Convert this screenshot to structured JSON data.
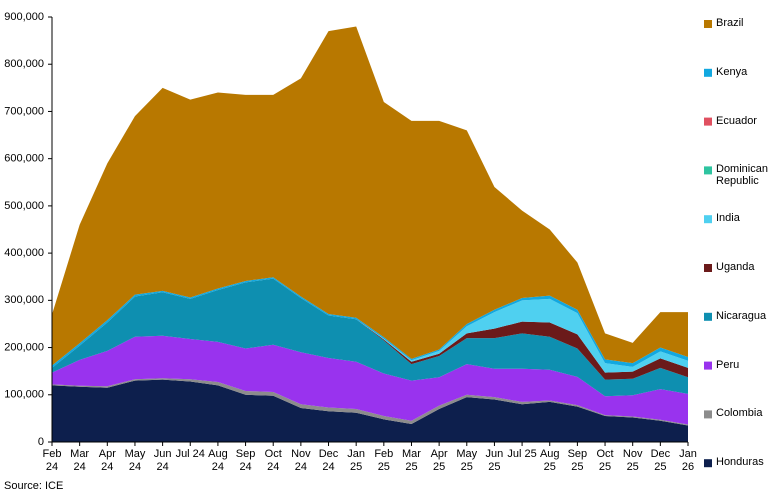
{
  "chart_data": {
    "type": "stacked-area",
    "source": "Source: ICE",
    "categories": [
      "Feb 24",
      "Mar 24",
      "Apr 24",
      "May 24",
      "Jun 24",
      "Jul 24",
      "Aug 24",
      "Sep 24",
      "Oct 24",
      "Nov 24",
      "Dec 24",
      "Jan 25",
      "Feb 25",
      "Mar 25",
      "Apr 25",
      "May 25",
      "Jun 25",
      "Jul 25",
      "Aug 25",
      "Sep 25",
      "Oct 25",
      "Nov 25",
      "Dec 25",
      "Jan 26"
    ],
    "ylim": [
      0,
      900000
    ],
    "yticks": [
      0,
      {
        "value": 100000,
        "label": "100,000"
      },
      {
        "value": 200000,
        "label": "200,000"
      },
      {
        "value": 300000,
        "label": "300,000"
      },
      {
        "value": 400000,
        "label": "400,000"
      },
      {
        "value": 500000,
        "label": "500,000"
      },
      {
        "value": 600000,
        "label": "600,000"
      },
      {
        "value": 700000,
        "label": "700,000"
      },
      {
        "value": 800000,
        "label": "800,000"
      },
      {
        "value": 900000,
        "label": "900,000"
      }
    ],
    "series": [
      {
        "name": "Honduras",
        "color": "#0d1f4d",
        "values": [
          120000,
          117000,
          115000,
          130000,
          132000,
          128000,
          120000,
          100000,
          98000,
          72000,
          65000,
          62000,
          48000,
          38000,
          70000,
          95000,
          90000,
          80000,
          85000,
          75000,
          55000,
          52000,
          45000,
          35000
        ]
      },
      {
        "name": "Colombia",
        "color": "#8c8c8c",
        "values": [
          2000,
          2000,
          3000,
          3000,
          3000,
          5000,
          7000,
          8000,
          8000,
          8000,
          8000,
          8000,
          7000,
          7000,
          7000,
          5000,
          5000,
          5000,
          3000,
          3000,
          2000,
          2000,
          2000,
          2000
        ]
      },
      {
        "name": "Peru",
        "color": "#9933ee",
        "values": [
          25000,
          55000,
          75000,
          90000,
          90000,
          85000,
          85000,
          90000,
          100000,
          110000,
          105000,
          100000,
          90000,
          85000,
          60000,
          65000,
          60000,
          70000,
          65000,
          60000,
          40000,
          45000,
          65000,
          65000
        ]
      },
      {
        "name": "Nicaragua",
        "color": "#0e8fb0",
        "values": [
          10000,
          30000,
          60000,
          85000,
          92000,
          85000,
          110000,
          140000,
          140000,
          115000,
          90000,
          90000,
          70000,
          35000,
          45000,
          55000,
          65000,
          75000,
          70000,
          60000,
          35000,
          35000,
          45000,
          35000
        ]
      },
      {
        "name": "Uganda",
        "color": "#6b1a1a",
        "values": [
          0,
          0,
          0,
          0,
          0,
          0,
          0,
          0,
          0,
          0,
          0,
          0,
          2000,
          5000,
          5000,
          10000,
          20000,
          25000,
          30000,
          30000,
          15000,
          15000,
          20000,
          20000
        ]
      },
      {
        "name": "India",
        "color": "#4fd0f0",
        "values": [
          0,
          0,
          0,
          0,
          0,
          0,
          0,
          0,
          0,
          0,
          0,
          0,
          2000,
          3000,
          6000,
          15000,
          35000,
          45000,
          50000,
          45000,
          20000,
          10000,
          15000,
          15000
        ]
      },
      {
        "name": "Dominican Republic",
        "color": "#2ec4a0",
        "values": [
          0,
          0,
          0,
          0,
          0,
          0,
          0,
          0,
          0,
          0,
          0,
          0,
          0,
          0,
          0,
          0,
          0,
          0,
          0,
          0,
          0,
          0,
          0,
          0
        ]
      },
      {
        "name": "Ecuador",
        "color": "#e05060",
        "values": [
          0,
          0,
          0,
          0,
          0,
          0,
          0,
          0,
          0,
          0,
          0,
          0,
          0,
          0,
          0,
          0,
          0,
          0,
          0,
          0,
          0,
          0,
          0,
          0
        ]
      },
      {
        "name": "Kenya",
        "color": "#12a8e0",
        "values": [
          5000,
          5000,
          5000,
          4000,
          3000,
          3000,
          3000,
          3000,
          3000,
          3000,
          3000,
          3000,
          3000,
          3000,
          3000,
          5000,
          5000,
          5000,
          7000,
          7000,
          8000,
          8000,
          8000,
          8000
        ]
      },
      {
        "name": "Brazil",
        "color": "#b87800",
        "values": [
          108000,
          251000,
          332000,
          378000,
          430000,
          419000,
          415000,
          394000,
          386000,
          462000,
          599000,
          617000,
          498000,
          504000,
          484000,
          410000,
          260000,
          185000,
          140000,
          100000,
          55000,
          43000,
          75000,
          95000
        ]
      }
    ]
  }
}
